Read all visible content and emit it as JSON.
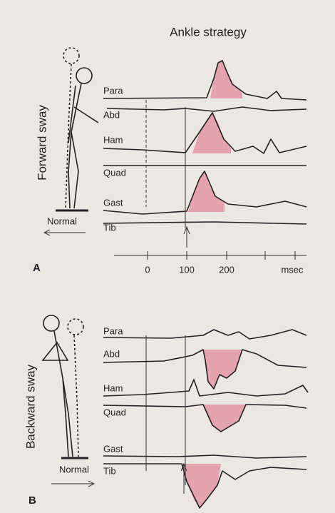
{
  "title": "Ankle strategy",
  "panels": [
    {
      "letter": "A",
      "side_label": "Forward sway",
      "figure_label": "Normal",
      "muscles": [
        "Para",
        "Abd",
        "Ham",
        "Quad",
        "Gast",
        "Tib"
      ],
      "axis": {
        "ticks": [
          0,
          100,
          200
        ],
        "unit": "msec"
      }
    },
    {
      "letter": "B",
      "side_label": "Backward sway",
      "figure_label": "Normal",
      "muscles": [
        "Para",
        "Abd",
        "Ham",
        "Quad",
        "Gast",
        "Tib"
      ]
    }
  ]
}
